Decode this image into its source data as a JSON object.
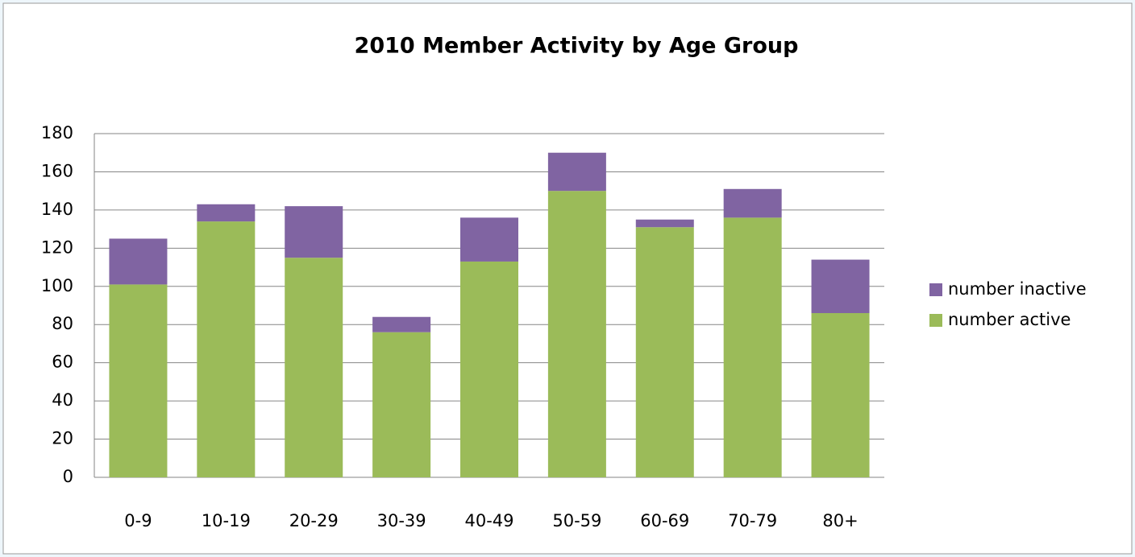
{
  "chart_data": {
    "type": "stacked_bar",
    "title": "2010 Member Activity by Age Group",
    "categories": [
      "0-9",
      "10-19",
      "20-29",
      "30-39",
      "40-49",
      "50-59",
      "60-69",
      "70-79",
      "80+"
    ],
    "series": [
      {
        "name": "number active",
        "color": "#9bbb59",
        "values": [
          101,
          134,
          115,
          76,
          113,
          150,
          131,
          136,
          86
        ]
      },
      {
        "name": "number inactive",
        "color": "#8064a2",
        "values": [
          24,
          9,
          27,
          8,
          23,
          20,
          4,
          15,
          28
        ]
      }
    ],
    "ylim": [
      0,
      180
    ],
    "yticks": [
      0,
      20,
      40,
      60,
      80,
      100,
      120,
      140,
      160,
      180
    ],
    "grid": true,
    "legend": "right"
  }
}
